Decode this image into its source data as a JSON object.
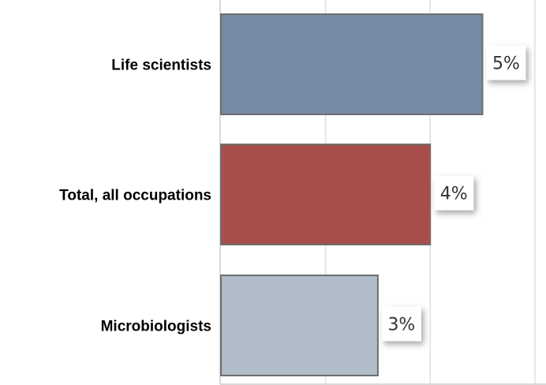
{
  "chart_data": {
    "type": "bar",
    "orientation": "horizontal",
    "categories": [
      "Life scientists",
      "Total, all occupations",
      "Microbiologists"
    ],
    "values": [
      5,
      4,
      3
    ],
    "data_labels": [
      "5%",
      "4%",
      "3%"
    ],
    "colors": [
      "#768ba3",
      "#a84e4a",
      "#b0bcc7"
    ],
    "xlim": [
      0,
      6.2
    ],
    "grid": true,
    "gridline_values": [
      2,
      4,
      6
    ],
    "title": "",
    "xlabel": "",
    "ylabel": ""
  }
}
